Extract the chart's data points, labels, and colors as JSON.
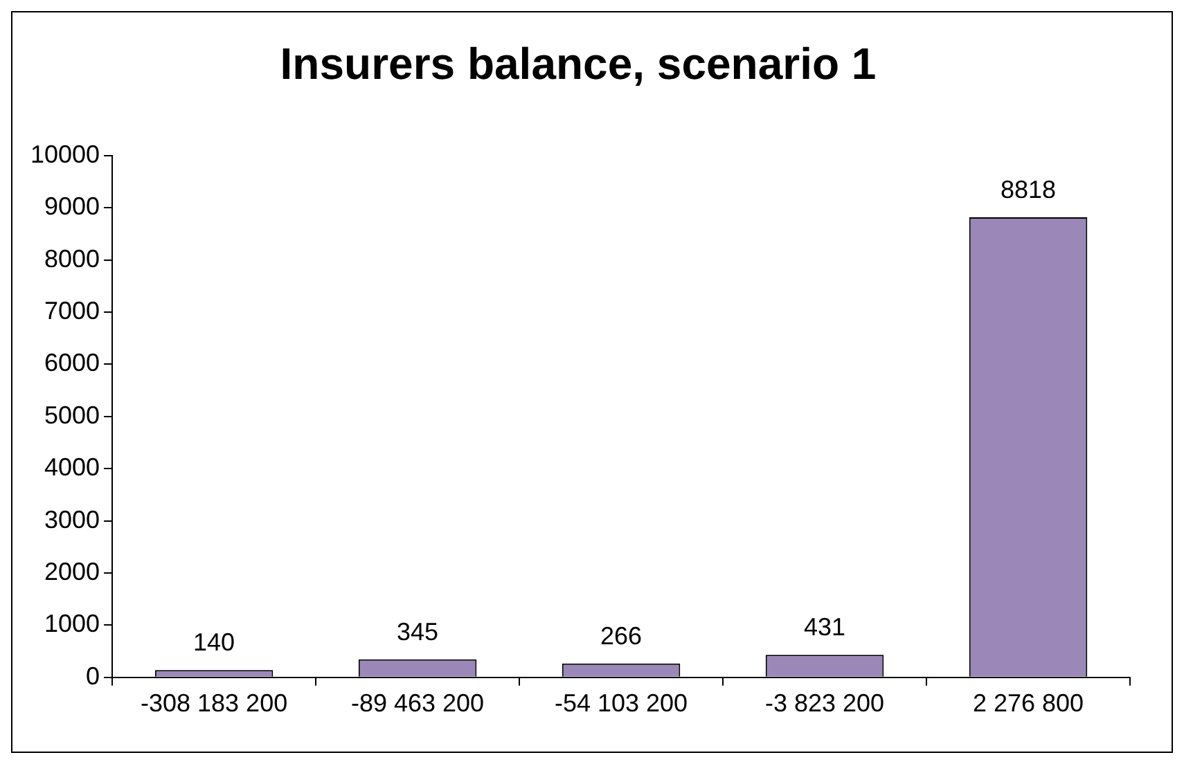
{
  "chart_data": {
    "type": "bar",
    "title": "Insurers balance, scenario 1",
    "categories": [
      "-308 183 200",
      "-89 463 200",
      "-54 103 200",
      "-3 823 200",
      "2 276 800"
    ],
    "values": [
      140,
      345,
      266,
      431,
      8818
    ],
    "color": "#9b87b8",
    "ylim": [
      0,
      10000
    ],
    "yticks": [
      0,
      1000,
      2000,
      3000,
      4000,
      5000,
      6000,
      7000,
      8000,
      9000,
      10000
    ],
    "grid": false,
    "legend": false,
    "data_labels": true
  }
}
